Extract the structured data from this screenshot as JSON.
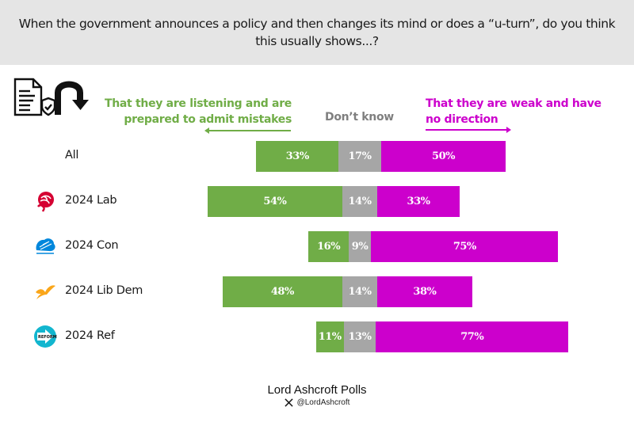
{
  "header": {
    "question": "When the government announces a policy and then changes its mind or does a “u-turn”, do you think this usually shows...?"
  },
  "icons": {
    "document": "document-shield-icon",
    "uturn": "u-turn-arrow-icon"
  },
  "footer": {
    "title": "Lord Ashcroft Polls",
    "handle": "@LordAshcroft",
    "social_icon": "x-logo-icon"
  },
  "colors": {
    "listening": "#70ad47",
    "dont_know": "#a6a6a6",
    "weak": "#cc00cc"
  },
  "chart_data": {
    "type": "bar",
    "orientation": "horizontal-diverging-stacked",
    "title": "When the government announces a policy and then changes its mind or does a “u-turn”, do you think this usually shows...?",
    "xlabel": "",
    "ylabel": "",
    "legend_placement": "top",
    "categories": [
      "All",
      "2024 Lab",
      "2024 Con",
      "2024 Lib Dem",
      "2024 Ref"
    ],
    "category_logos": [
      null,
      "labour-rose-icon",
      "conservative-tree-icon",
      "libdem-bird-icon",
      "reform-uk-icon"
    ],
    "series": [
      {
        "name": "That they are listening and are prepared to admit mistakes",
        "color": "#70ad47",
        "values": [
          33,
          54,
          16,
          48,
          11
        ]
      },
      {
        "name": "Don’t know",
        "color": "#a6a6a6",
        "values": [
          17,
          14,
          9,
          14,
          13
        ]
      },
      {
        "name": "That they are weak and have no direction",
        "color": "#cc00cc",
        "values": [
          50,
          33,
          75,
          38,
          77
        ]
      }
    ],
    "value_suffix": "%",
    "grid": false
  }
}
